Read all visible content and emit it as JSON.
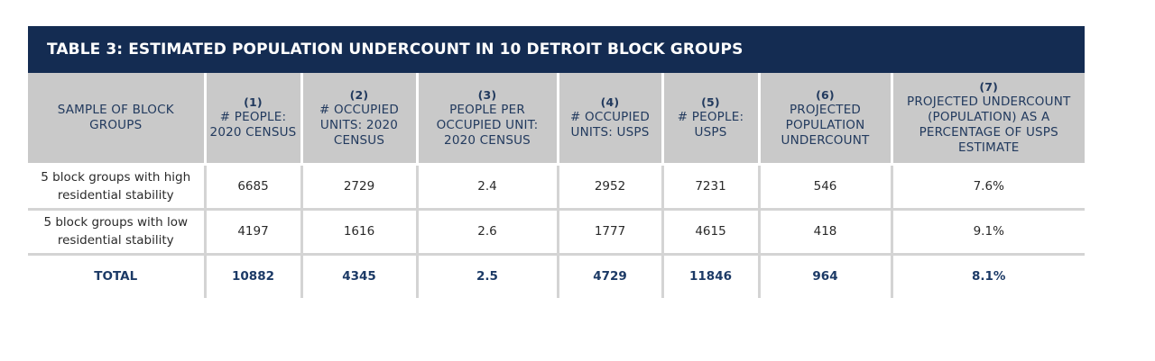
{
  "title": "TABLE 3: ESTIMATED POPULATION UNDERCOUNT IN 10 DETROIT BLOCK GROUPS",
  "headers": [
    {
      "num": "",
      "label": "SAMPLE OF BLOCK GROUPS"
    },
    {
      "num": "(1)",
      "label": "# PEOPLE: 2020 CENSUS"
    },
    {
      "num": "(2)",
      "label": "# OCCUPIED UNITS: 2020 CENSUS"
    },
    {
      "num": "(3)",
      "label": "PEOPLE PER OCCUPIED UNIT: 2020 CENSUS"
    },
    {
      "num": "(4)",
      "label": "# OCCUPIED UNITS: USPS"
    },
    {
      "num": "(5)",
      "label": "# PEOPLE: USPS"
    },
    {
      "num": "(6)",
      "label": "PROJECTED POPULATION UNDERCOUNT"
    },
    {
      "num": "(7)",
      "label": "PROJECTED UNDERCOUNT (POPULATION) AS A PERCENTAGE OF USPS ESTIMATE"
    }
  ],
  "rows": [
    [
      "5 block groups with high residential stability",
      "6685",
      "2729",
      "2.4",
      "2952",
      "7231",
      "546",
      "7.6%"
    ],
    [
      "5 block groups with low residential stability",
      "4197",
      "1616",
      "2.6",
      "1777",
      "4615",
      "418",
      "9.1%"
    ]
  ],
  "total": [
    "TOTAL",
    "10882",
    "4345",
    "2.5",
    "4729",
    "11846",
    "964",
    "8.1%"
  ]
}
